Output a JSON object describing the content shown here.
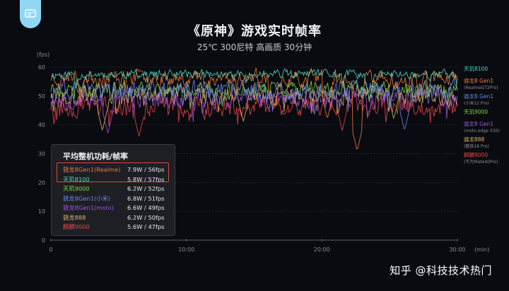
{
  "header": {
    "title": "《原神》游戏实时帧率",
    "subtitle": "25℃ 300尼特 高画质 30分钟"
  },
  "watermark": "知乎 @科技技术热门",
  "chart_data": {
    "type": "line",
    "xlabel": "(min)",
    "ylabel": "(fps)",
    "xlim": [
      0,
      30
    ],
    "ylim": [
      0,
      60
    ],
    "x_ticks": [
      {
        "value": 0,
        "label": "0"
      },
      {
        "value": 10,
        "label": "10:00"
      },
      {
        "value": 20,
        "label": "20:00"
      },
      {
        "value": 30,
        "label": "30:00"
      }
    ],
    "y_ticks": [
      0,
      10,
      20,
      30,
      40,
      50,
      60
    ],
    "grid": true,
    "legend_placement": "right",
    "series": [
      {
        "name": "天玑8100",
        "sub": "",
        "color": "#4fd9c0",
        "avg_fps": 57,
        "base": 57.5,
        "noise": 2.4,
        "dips": [
          [
            23.5,
            49
          ]
        ],
        "seed": 11
      },
      {
        "name": "骁龙8 Gen1",
        "sub": "(RealmeGT2Pro)",
        "color": "#f07a3a",
        "avg_fps": 56,
        "base": 56.5,
        "noise": 4.2,
        "dips": [
          [
            22.6,
            31
          ],
          [
            20.4,
            42
          ],
          [
            16.4,
            45
          ]
        ],
        "seed": 23
      },
      {
        "name": "骁龙8 Gen1",
        "sub": "(小米12 Pro)",
        "color": "#6a86e8",
        "avg_fps": 51,
        "base": 52,
        "noise": 5.0,
        "dips": [
          [
            26.1,
            38
          ]
        ],
        "seed": 37
      },
      {
        "name": "天玑9000",
        "sub": "",
        "color": "#7bd648",
        "avg_fps": 52,
        "base": 52.5,
        "noise": 4.0,
        "dips": [
          [
            25.3,
            42
          ]
        ],
        "seed": 41
      },
      {
        "name": "骁龙8 Gen1",
        "sub": "(moto edge X30)",
        "color": "#9a55d8",
        "avg_fps": 49,
        "base": 49.5,
        "noise": 5.5,
        "dips": [
          [
            4.2,
            37
          ]
        ],
        "seed": 53
      },
      {
        "name": "骁龙888",
        "sub": "(魅族18 Pro)",
        "color": "#d9b56a",
        "avg_fps": 50,
        "base": 50.5,
        "noise": 4.8,
        "dips": [
          [
            3.8,
            38
          ],
          [
            14.2,
            41
          ]
        ],
        "seed": 67
      },
      {
        "name": "麒麟9000",
        "sub": "(华为Mate40Pro)",
        "color": "#e8434a",
        "avg_fps": 47,
        "base": 46.5,
        "noise": 5.5,
        "dips": [
          [
            6.5,
            36
          ],
          [
            21.5,
            38
          ]
        ],
        "seed": 79
      }
    ]
  },
  "legend_panel": {
    "title": "平均整机功耗/帧率",
    "rows": [
      {
        "name": "骁龙8Gen1(Realme)",
        "value": "7.9W / 56fps",
        "color": "#f07a3a"
      },
      {
        "name": "天玑8100",
        "value": "5.8W / 57fps",
        "color": "#4fd9c0"
      },
      {
        "name": "天玑9000",
        "value": "6.2W / 52fps",
        "color": "#7bd648"
      },
      {
        "name": "骁龙8Gen1(小米)",
        "value": "6.8W / 51fps",
        "color": "#6a86e8"
      },
      {
        "name": "骁龙8Gen1(moto)",
        "value": "6.6W / 49fps",
        "color": "#9a55d8"
      },
      {
        "name": "骁龙888",
        "value": "6.2W / 50fps",
        "color": "#d9b56a"
      },
      {
        "name": "麒麟9000",
        "value": "5.6W / 47fps",
        "color": "#e8434a"
      }
    ]
  }
}
